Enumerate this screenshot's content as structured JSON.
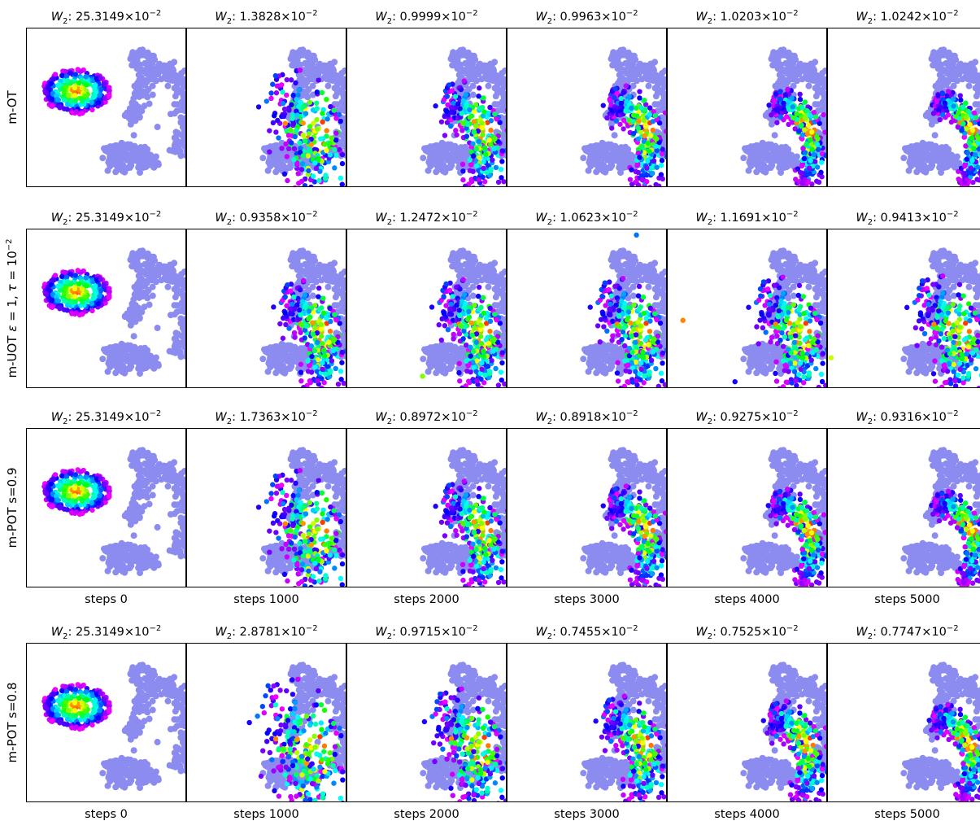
{
  "figure": {
    "background": "#ffffff",
    "target_color": "#8c8cf0",
    "marker": "scatter dots",
    "colormap": "hsv rainbow (red center to magenta edge)"
  },
  "chart_data": [
    {
      "type": "scatter",
      "row_label": "m-OT",
      "row_label_math": false,
      "titles": [
        "25.3149",
        "1.3828",
        "0.9999",
        "0.9963",
        "1.0203",
        "1.0242"
      ],
      "steps": [
        "",
        "",
        "",
        "",
        "",
        ""
      ],
      "spreads": [
        0,
        1,
        0.55,
        0.35,
        0.2,
        0.12
      ],
      "outliers": [
        [],
        [],
        [],
        [],
        [],
        []
      ],
      "grid": false,
      "legend": "none"
    },
    {
      "type": "scatter",
      "row_label": "",
      "row_label_math": true,
      "titles": [
        "25.3149",
        "0.9358",
        "1.2472",
        "1.0623",
        "1.1691",
        "0.9413"
      ],
      "steps": [
        "",
        "",
        "",
        "",
        "",
        ""
      ],
      "spreads": [
        0,
        0.6,
        0.65,
        0.7,
        0.75,
        0.8
      ],
      "outliers": [
        [],
        [],
        [
          [
            -0.05,
            -0.85
          ]
        ],
        [
          [
            0.62,
            0.92
          ]
        ],
        [
          [
            -0.8,
            -0.15
          ],
          [
            -0.15,
            -0.92
          ]
        ],
        [
          [
            -0.95,
            -0.62
          ],
          [
            0.95,
            0.2
          ]
        ]
      ],
      "grid": false,
      "legend": "none"
    },
    {
      "type": "scatter",
      "row_label": "m-POT s=0.9",
      "row_label_math": false,
      "titles": [
        "25.3149",
        "1.7363",
        "0.8972",
        "0.8918",
        "0.9275",
        "0.9316"
      ],
      "steps": [
        "steps 0",
        "steps 1000",
        "steps 2000",
        "steps 3000",
        "steps 4000",
        "steps 5000"
      ],
      "spreads": [
        0,
        1,
        0.55,
        0.35,
        0.22,
        0.14
      ],
      "outliers": [
        [],
        [],
        [],
        [],
        [],
        []
      ],
      "grid": false,
      "legend": "none"
    },
    {
      "type": "scatter",
      "row_label": "m-POT s=0.8",
      "row_label_math": false,
      "titles": [
        "25.3149",
        "2.8781",
        "0.9715",
        "0.7455",
        "0.7525",
        "0.7747"
      ],
      "steps": [
        "steps 0",
        "steps 1000",
        "steps 2000",
        "steps 3000",
        "steps 4000",
        "steps 5000"
      ],
      "spreads": [
        0,
        1.25,
        0.85,
        0.55,
        0.35,
        0.2
      ],
      "outliers": [
        [],
        [],
        [],
        [],
        [],
        []
      ],
      "grid": false,
      "legend": "none"
    }
  ]
}
